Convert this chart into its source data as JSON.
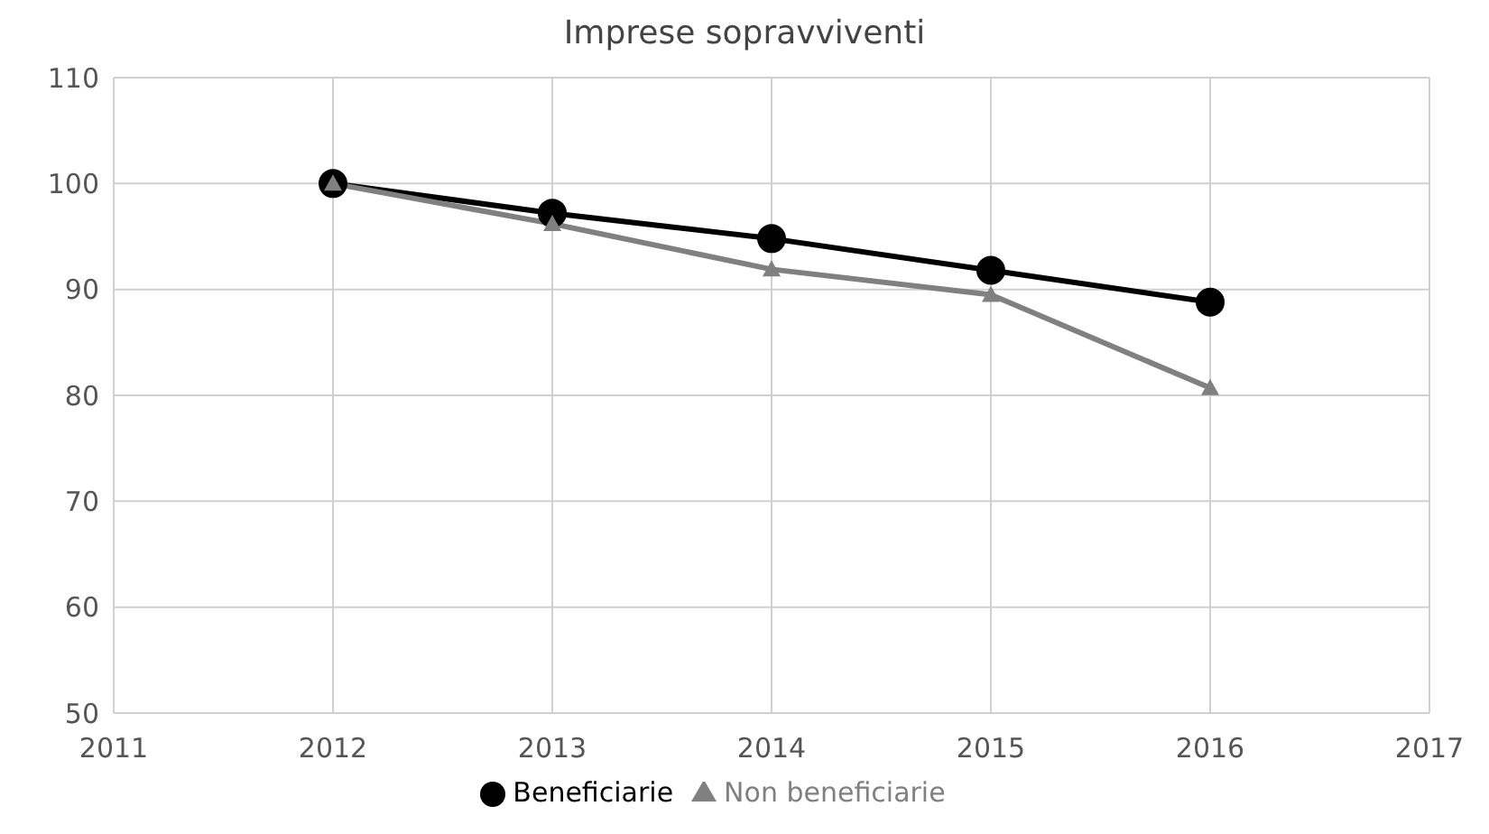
{
  "chart_data": {
    "type": "line",
    "title": "Imprese sopravviventi",
    "x": [
      2012,
      2013,
      2014,
      2015,
      2016
    ],
    "series": [
      {
        "name": "Beneficiarie",
        "color": "#000000",
        "marker": "circle",
        "values": [
          100,
          97.2,
          94.8,
          91.8,
          88.8
        ]
      },
      {
        "name": "Non beneficiarie",
        "color": "#808080",
        "marker": "triangle",
        "values": [
          100,
          96.2,
          91.9,
          89.5,
          80.7
        ]
      }
    ],
    "xlim": [
      2011,
      2017
    ],
    "xticks": [
      2011,
      2012,
      2013,
      2014,
      2015,
      2016,
      2017
    ],
    "ylim": [
      50,
      110
    ],
    "yticks": [
      50,
      60,
      70,
      80,
      90,
      100,
      110
    ],
    "grid": true,
    "legend": "bottom"
  }
}
